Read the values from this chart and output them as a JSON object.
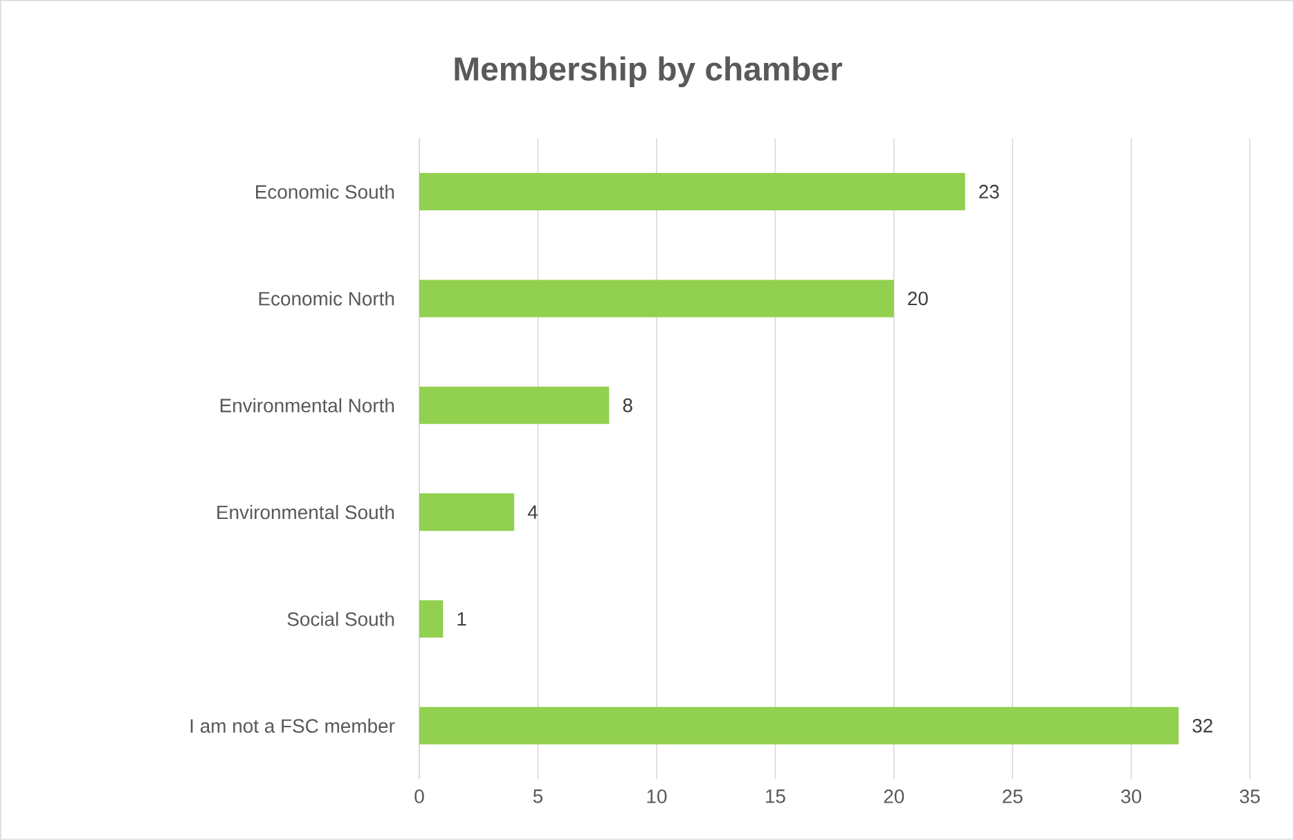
{
  "chart_data": {
    "type": "bar",
    "orientation": "horizontal",
    "title": "Membership by chamber",
    "categories": [
      "Economic South",
      "Economic North",
      "Environmental North",
      "Environmental South",
      "Social South",
      "I am not a FSC member"
    ],
    "values": [
      23,
      20,
      8,
      4,
      1,
      32
    ],
    "color": "#92d050",
    "xlim": [
      0,
      35
    ],
    "xticks": [
      0,
      5,
      10,
      15,
      20,
      25,
      30,
      35
    ],
    "grid": "x",
    "data_labels": true
  }
}
